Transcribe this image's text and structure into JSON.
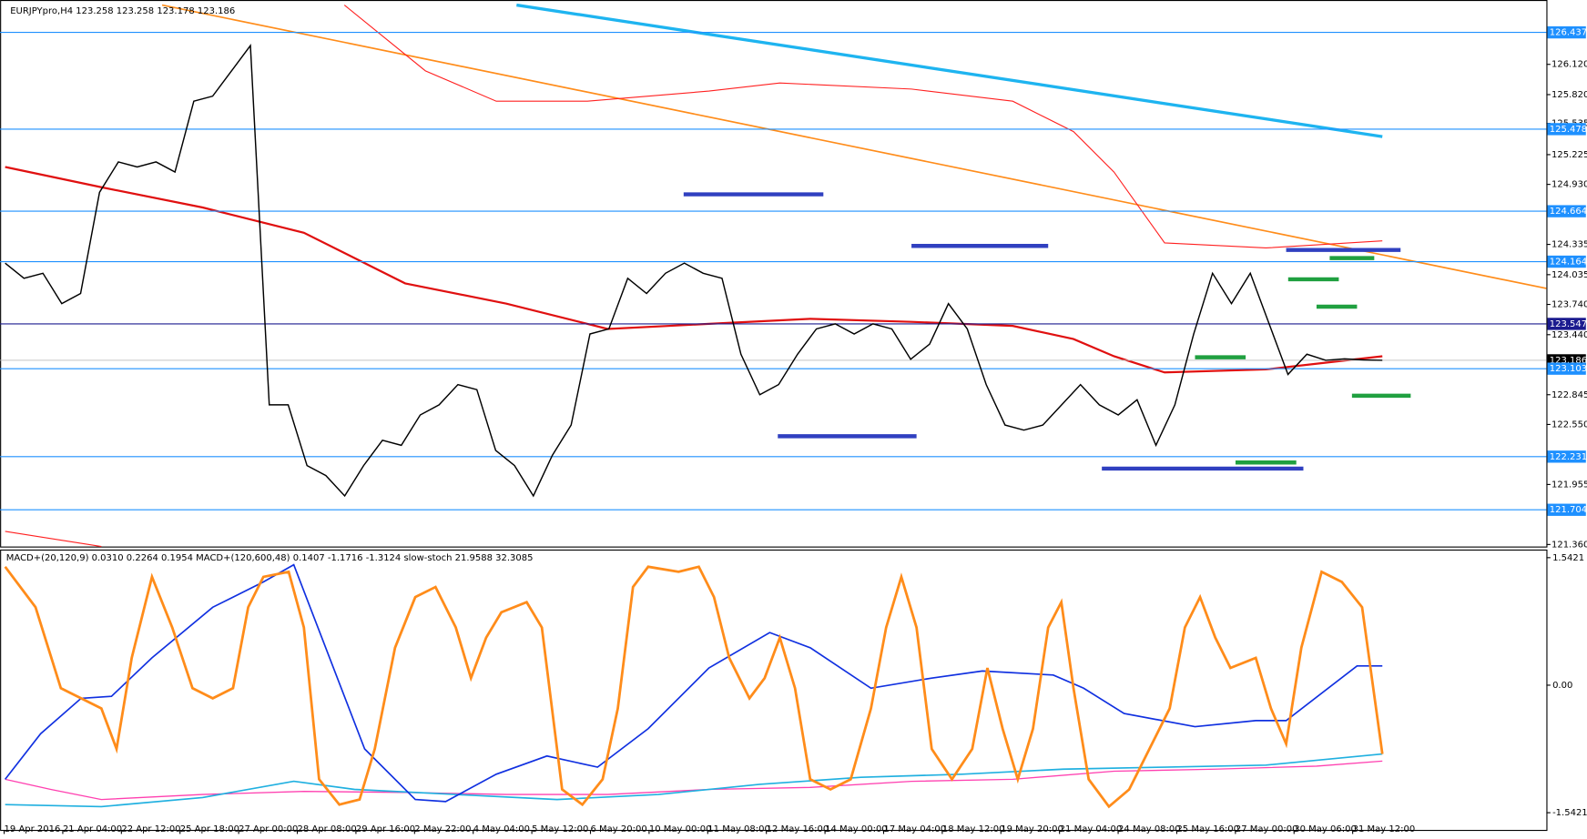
{
  "chart_data": {
    "type": "line",
    "title": "EURJPYpro,H4  123.258 123.258 123.178 123.186",
    "categories": [
      null,
      null,
      null,
      null,
      null,
      null,
      null,
      null,
      null,
      null,
      null,
      null,
      null,
      null,
      null,
      null,
      null,
      null,
      null,
      null,
      null,
      null,
      null,
      null,
      null,
      null,
      null,
      null,
      null,
      null,
      null,
      null,
      null,
      null,
      null,
      null,
      null,
      null,
      null,
      null,
      null,
      null,
      null,
      null,
      null,
      null,
      null,
      null,
      null,
      null,
      null,
      null,
      null,
      null,
      null,
      null,
      null,
      null,
      null,
      null,
      null,
      null,
      null,
      null,
      null,
      null,
      null,
      null,
      null,
      null,
      null,
      null,
      null,
      null
    ],
    "series": [
      {
        "color": "#000000",
        "values": [
          124.149,
          123.999,
          124.049,
          123.748,
          123.848,
          124.852,
          125.153,
          125.103,
          125.153,
          125.052,
          125.755,
          125.805,
          126.056,
          126.307,
          122.745,
          122.745,
          122.143,
          122.043,
          121.842,
          122.143,
          122.394,
          122.343,
          122.644,
          122.745,
          122.945,
          122.895,
          122.293,
          122.143,
          121.842,
          122.243,
          122.544,
          123.447,
          123.497,
          123.999,
          123.848,
          124.049,
          124.149,
          124.049,
          123.999,
          123.246,
          122.845,
          122.945,
          123.246,
          123.497,
          123.547,
          123.447,
          123.547,
          123.497,
          123.196,
          123.347,
          123.748,
          123.497,
          122.945,
          122.544,
          122.494,
          122.544,
          122.745,
          122.945,
          122.745,
          122.644,
          122.795,
          122.343,
          122.745,
          123.447,
          124.049,
          123.748,
          124.049,
          123.547,
          123.046,
          123.246,
          123.186,
          123.2,
          123.19,
          123.186
        ]
      }
    ],
    "ylim": [
      121.34,
      126.758
    ],
    "yticks": [
      {
        "value": 126.12,
        "label": "126.120"
      },
      {
        "value": 125.82,
        "label": "125.820"
      },
      {
        "value": 125.535,
        "label": "125.535"
      },
      {
        "value": 125.225,
        "label": "125.225"
      },
      {
        "value": 124.93,
        "label": "124.930"
      },
      {
        "value": 124.335,
        "label": "124.335"
      },
      {
        "value": 124.035,
        "label": "124.035"
      },
      {
        "value": 123.74,
        "label": "123.740"
      },
      {
        "value": 123.44,
        "label": "123.440"
      },
      {
        "value": 122.845,
        "label": "122.845"
      },
      {
        "value": 122.55,
        "label": "122.550"
      },
      {
        "value": 121.955,
        "label": "121.955"
      },
      {
        "value": 121.36,
        "label": "121.360"
      }
    ],
    "levels": [
      {
        "value": 126.437,
        "label": "126.437",
        "color": "#1e90ff"
      },
      {
        "value": 125.478,
        "label": "125.478",
        "color": "#1e90ff"
      },
      {
        "value": 124.664,
        "label": "124.664",
        "color": "#1e90ff"
      },
      {
        "value": 124.164,
        "label": "124.164",
        "color": "#1e90ff"
      },
      {
        "value": 123.547,
        "label": "123.547",
        "color": "#1b1b8f"
      },
      {
        "value": 123.186,
        "label": "123.186",
        "color": "#000000"
      },
      {
        "value": 123.103,
        "label": "123.103",
        "color": "#1e90ff"
      },
      {
        "value": 122.231,
        "label": "122.231",
        "color": "#1e90ff"
      },
      {
        "value": 121.704,
        "label": "121.704",
        "color": "#1e90ff"
      }
    ],
    "xtick_labels": [
      "19 Apr 2016",
      "21 Apr 04:00",
      "22 Apr 12:00",
      "25 Apr 18:00",
      "27 Apr 00:00",
      "28 Apr 08:00",
      "29 Apr 16:00",
      "2 May 22:00",
      "4 May 04:00",
      "5 May 12:00",
      "6 May 20:00",
      "10 May 00:00",
      "11 May 08:00",
      "12 May 16:00",
      "14 May 00:00",
      "17 May 04:00",
      "18 May 12:00",
      "19 May 20:00",
      "21 May 04:00",
      "24 May 08:00",
      "25 May 16:00",
      "27 May 00:00",
      "30 May 06:00",
      "31 May 12:00"
    ],
    "indicator": {
      "title": "MACD+(20,120,9) 0.0310 0.2264 0.1954  MACD+(120,600,48) 0.1407 -1.1716 -1.3124  slow-stoch 21.9588 32.3085",
      "ylim": [
        -1.75,
        1.628
      ],
      "yticks": [
        1.5421,
        {
          "value": 0,
          "label": "0.00"
        },
        -1.5421
      ]
    }
  }
}
